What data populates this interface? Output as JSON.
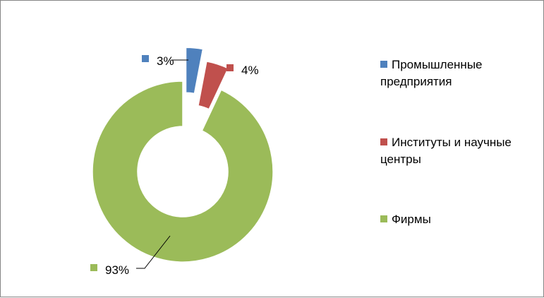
{
  "chart_data": {
    "type": "pie",
    "variant": "doughnut-exploded",
    "categories": [
      "Промышленные предприятия",
      "Институты и научные центры",
      "Фирмы"
    ],
    "values": [
      3,
      4,
      93
    ],
    "data_labels": [
      "3%",
      "4%",
      "93%"
    ],
    "colors": [
      "#4f81bd",
      "#c0504d",
      "#9bbb59"
    ],
    "legend_position": "right",
    "title": ""
  }
}
